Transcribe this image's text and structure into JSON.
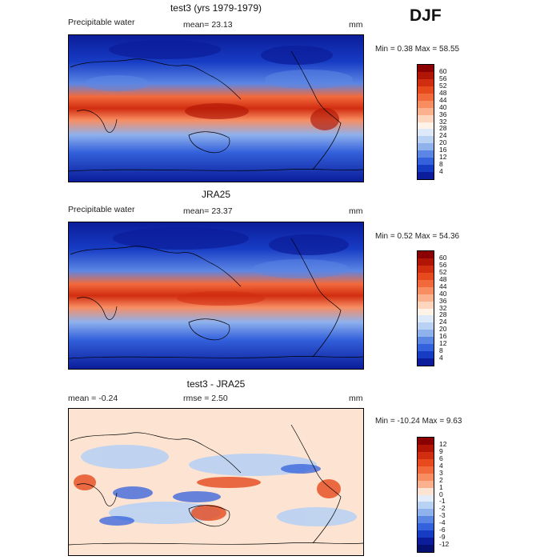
{
  "season": "DJF",
  "panels": [
    {
      "title": "test3 (yrs 1979-1979)",
      "left_label": "Precipitable water",
      "center_label": "mean=  23.13",
      "units": "mm",
      "minmax": "Min =    0.38  Max =   58.55",
      "kind": "abs"
    },
    {
      "title": "JRA25",
      "left_label": "Precipitable water",
      "center_label": "mean=  23.37",
      "units": "mm",
      "minmax": "Min =    0.52  Max =   54.36",
      "kind": "abs"
    },
    {
      "title": "test3 - JRA25",
      "left_label": "mean =   -0.24",
      "center_label": "rmse =    2.50",
      "units": "mm",
      "minmax": "Min = -10.24  Max =    9.63",
      "kind": "diff"
    }
  ],
  "colorbar_abs": {
    "labels": [
      "60",
      "56",
      "52",
      "48",
      "44",
      "40",
      "36",
      "32",
      "28",
      "24",
      "20",
      "16",
      "12",
      "8",
      "4"
    ],
    "colors": [
      "#8b0000",
      "#b01505",
      "#d12d10",
      "#e64a1d",
      "#f26a3c",
      "#f88d62",
      "#fbb08e",
      "#fdd6bd",
      "#fff2e6",
      "#dde9f8",
      "#b9d1f3",
      "#8fb1ec",
      "#5c86e4",
      "#3461dc",
      "#173cc4",
      "#0b1d9a"
    ]
  },
  "colorbar_diff": {
    "labels": [
      "12",
      "9",
      "6",
      "4",
      "3",
      "2",
      "1",
      "0",
      "-1",
      "-2",
      "-3",
      "-4",
      "-6",
      "-9",
      "-12"
    ],
    "colors": [
      "#8b0000",
      "#b01505",
      "#d12d10",
      "#e64a1d",
      "#f26a3c",
      "#f88d62",
      "#fbb08e",
      "#fde4d2",
      "#e2edf9",
      "#b9d1f3",
      "#8fb1ec",
      "#5c86e4",
      "#3461dc",
      "#173cc4",
      "#0b1d9a",
      "#061070"
    ]
  }
}
